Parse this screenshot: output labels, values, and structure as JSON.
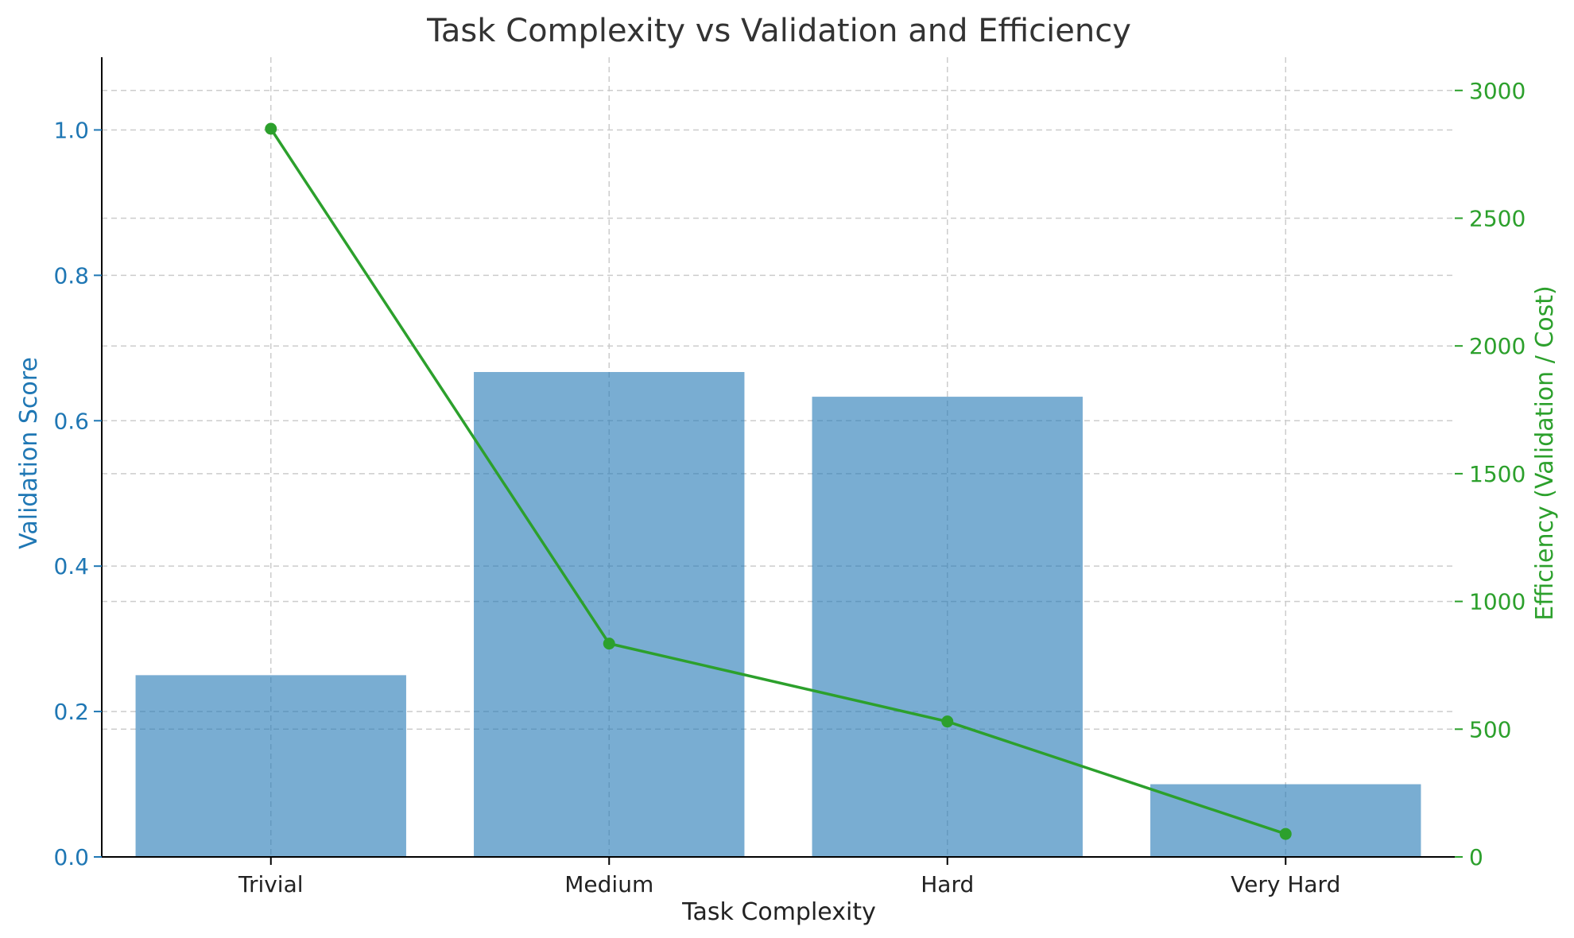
{
  "chart_data": {
    "type": "bar",
    "title": "Task Complexity vs Validation and Efficiency",
    "xlabel": "Task Complexity",
    "categories": [
      "Trivial",
      "Medium",
      "Hard",
      "Very Hard"
    ],
    "series": [
      {
        "type": "bar",
        "axis": "left",
        "values": [
          0.25,
          0.667,
          0.633,
          0.1
        ],
        "color": "#1f77b4"
      },
      {
        "type": "line",
        "axis": "right",
        "values": [
          2850,
          835,
          530,
          90
        ],
        "color": "#2ca02c"
      }
    ],
    "y_left": {
      "label": "Validation Score",
      "ylim": [
        0,
        1.1
      ],
      "ticks": [
        0.0,
        0.2,
        0.4,
        0.6,
        0.8,
        1.0
      ],
      "tick_labels": [
        "0.0",
        "0.2",
        "0.4",
        "0.6",
        "0.8",
        "1.0"
      ],
      "color": "#1f77b4"
    },
    "y_right": {
      "label": "Efficiency (Validation / Cost)",
      "ylim": [
        0,
        3130
      ],
      "ticks": [
        0,
        500,
        1000,
        1500,
        2000,
        2500,
        3000
      ],
      "tick_labels": [
        "0",
        "500",
        "1000",
        "1500",
        "2000",
        "2500",
        "3000"
      ],
      "color": "#2ca02c"
    },
    "grid": true,
    "bar_opacity": 0.6
  }
}
